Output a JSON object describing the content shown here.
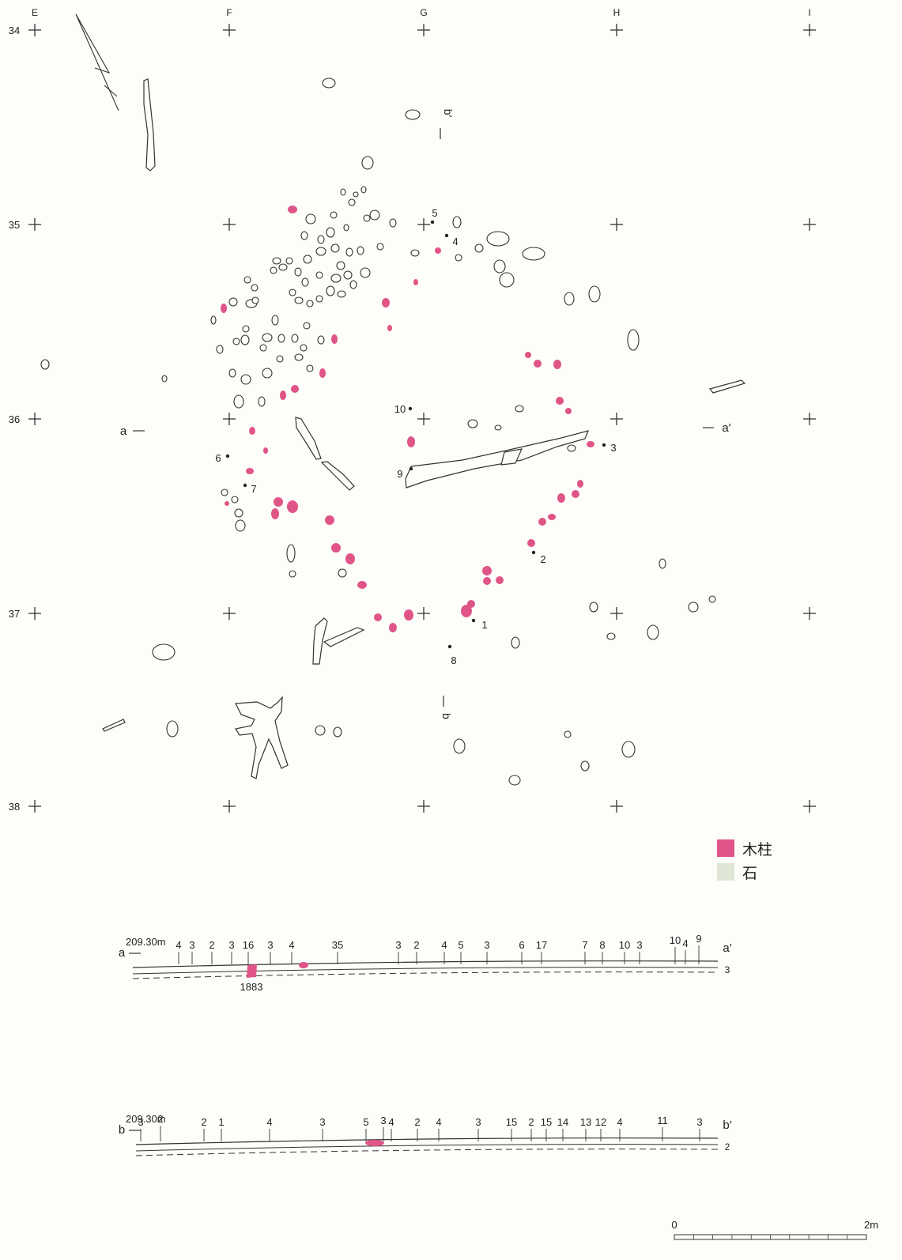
{
  "grid": {
    "columns": [
      "E",
      "F",
      "G",
      "H",
      "I"
    ],
    "rows": [
      "34",
      "35",
      "36",
      "37",
      "38"
    ]
  },
  "section_markers": {
    "a_start": "a",
    "a_end": "a′",
    "b_start": "b",
    "b_end": "b′"
  },
  "points": [
    {
      "label": "1"
    },
    {
      "label": "2"
    },
    {
      "label": "3"
    },
    {
      "label": "4"
    },
    {
      "label": "5"
    },
    {
      "label": "6"
    },
    {
      "label": "7"
    },
    {
      "label": "8"
    },
    {
      "label": "9"
    },
    {
      "label": "10"
    }
  ],
  "legend": {
    "items": [
      {
        "label": "木柱",
        "color": "#e05587"
      },
      {
        "label": "石",
        "color": "#dfe6d6"
      }
    ]
  },
  "section_a": {
    "start": "a",
    "elevation": "209.30m",
    "end": "a′",
    "layer_labels": [
      "4",
      "3",
      "2",
      "3",
      "16",
      "3",
      "4",
      "35",
      "3",
      "2",
      "4",
      "5",
      "3",
      "6",
      "17",
      "7",
      "8",
      "10",
      "3",
      "10",
      "4",
      "9"
    ],
    "end_layer": "3",
    "feature_label": "1883"
  },
  "section_b": {
    "start": "b",
    "elevation": "209.30m",
    "end": "b′",
    "layer_labels": [
      "3",
      "2",
      "2",
      "1",
      "4",
      "3",
      "5",
      "3",
      "4",
      "2",
      "4",
      "3",
      "15",
      "2",
      "15",
      "14",
      "13",
      "12",
      "4",
      "11",
      "3"
    ],
    "end_layer": "2"
  },
  "scale_bar": {
    "start": "0",
    "end": "2m"
  },
  "colors": {
    "post": "#e05587",
    "stone_fill": "#dfe6d6",
    "line": "#333333"
  }
}
